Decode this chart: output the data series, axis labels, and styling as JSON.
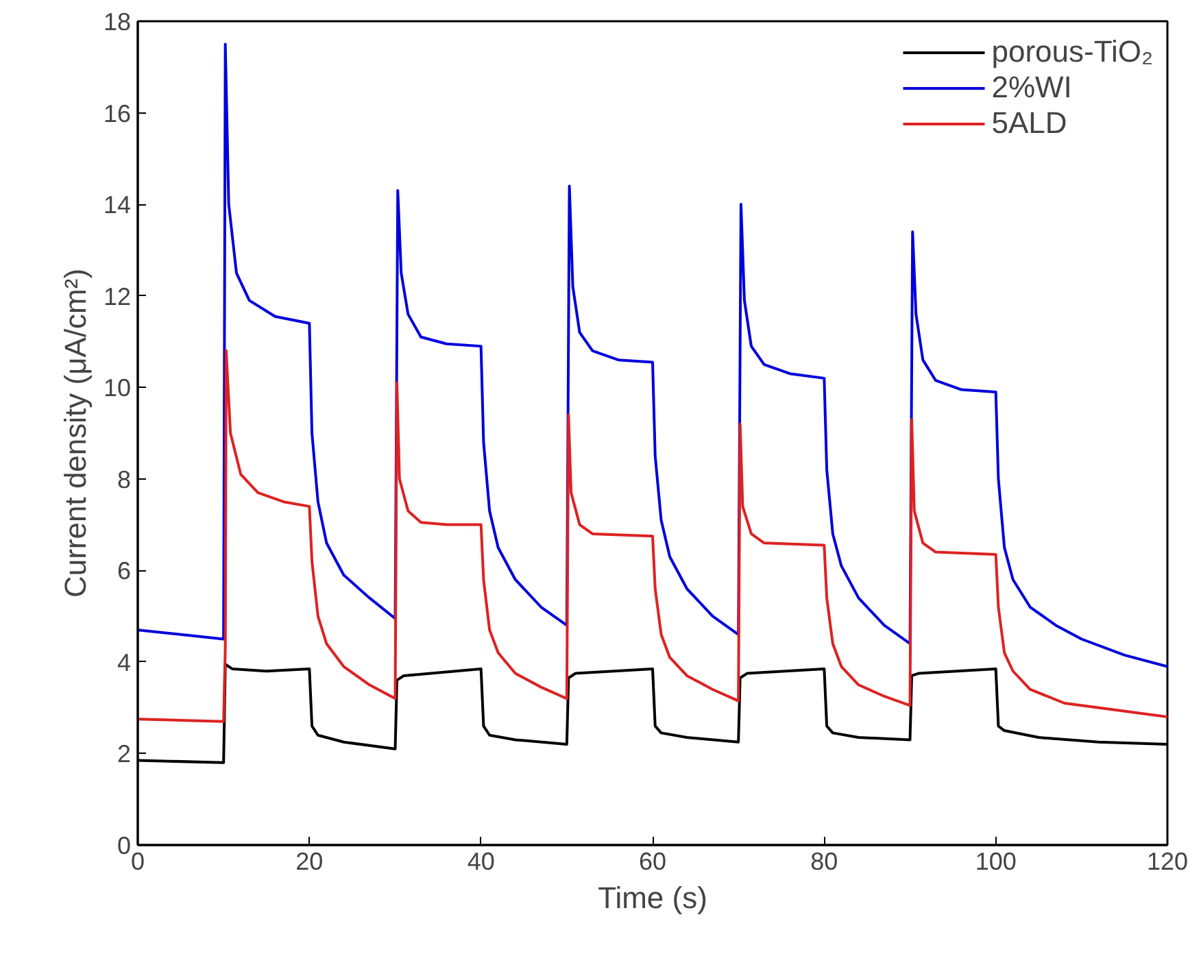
{
  "chart_data": {
    "type": "line",
    "xlabel": "Time (s)",
    "ylabel": "Current density (μA/cm²)",
    "xlim": [
      0,
      120
    ],
    "ylim": [
      0,
      18
    ],
    "xticks": [
      0,
      20,
      40,
      60,
      80,
      100,
      120
    ],
    "yticks": [
      0,
      2,
      4,
      6,
      8,
      10,
      12,
      14,
      16,
      18
    ],
    "grid": false,
    "legend": "top right",
    "marker": "none",
    "line_style": "solid",
    "series": [
      {
        "name": "porous-TiO₂",
        "color": "#000000",
        "x": [
          0,
          10,
          10.2,
          11,
          15,
          20,
          20.3,
          21,
          24,
          30,
          30.2,
          31,
          40,
          40.3,
          41,
          44,
          50,
          50.2,
          51,
          60,
          60.3,
          61,
          64,
          70,
          70.2,
          71,
          80,
          80.3,
          81,
          84,
          90,
          90.2,
          91,
          100,
          100.3,
          101,
          105,
          112,
          120
        ],
        "values": [
          1.85,
          1.8,
          3.95,
          3.85,
          3.8,
          3.85,
          2.6,
          2.4,
          2.25,
          2.1,
          3.6,
          3.7,
          3.85,
          2.6,
          2.4,
          2.3,
          2.2,
          3.65,
          3.75,
          3.85,
          2.6,
          2.45,
          2.35,
          2.25,
          3.65,
          3.75,
          3.85,
          2.6,
          2.45,
          2.35,
          2.3,
          3.7,
          3.75,
          3.85,
          2.6,
          2.5,
          2.35,
          2.25,
          2.2
        ]
      },
      {
        "name": "2%WI",
        "color": "#0000dd",
        "x": [
          0,
          10,
          10.2,
          10.6,
          11.5,
          13,
          16,
          20,
          20.3,
          21,
          22,
          24,
          27,
          30,
          30.3,
          30.7,
          31.5,
          33,
          36,
          40,
          40.3,
          41,
          42,
          44,
          47,
          50,
          50.3,
          50.7,
          51.5,
          53,
          56,
          60,
          60.3,
          61,
          62,
          64,
          67,
          70,
          70.3,
          70.7,
          71.5,
          73,
          76,
          80,
          80.3,
          81,
          82,
          84,
          87,
          90,
          90.3,
          90.7,
          91.5,
          93,
          96,
          100,
          100.3,
          101,
          102,
          104,
          107,
          110,
          115,
          120
        ],
        "values": [
          4.7,
          4.5,
          17.5,
          14,
          12.5,
          11.9,
          11.55,
          11.4,
          9,
          7.5,
          6.6,
          5.9,
          5.4,
          4.95,
          14.3,
          12.5,
          11.6,
          11.1,
          10.95,
          10.9,
          8.8,
          7.3,
          6.5,
          5.8,
          5.2,
          4.8,
          14.4,
          12.2,
          11.2,
          10.8,
          10.6,
          10.55,
          8.5,
          7.1,
          6.3,
          5.6,
          5.0,
          4.6,
          14.0,
          11.9,
          10.9,
          10.5,
          10.3,
          10.2,
          8.2,
          6.8,
          6.1,
          5.4,
          4.8,
          4.4,
          13.4,
          11.6,
          10.6,
          10.15,
          9.95,
          9.9,
          8,
          6.5,
          5.8,
          5.2,
          4.8,
          4.5,
          4.15,
          3.9
        ]
      },
      {
        "name": "5ALD",
        "color": "#dd2222",
        "x": [
          0,
          10,
          10.2,
          10.3,
          10.8,
          12,
          14,
          17,
          20,
          20.3,
          21,
          22,
          24,
          27,
          30,
          30.2,
          30.5,
          31.5,
          33,
          36,
          40,
          40.3,
          41,
          42,
          44,
          47,
          50,
          50.2,
          50.5,
          51.5,
          53,
          60,
          60.3,
          61,
          62,
          64,
          67,
          70,
          70.2,
          70.5,
          71.5,
          73,
          80,
          80.3,
          81,
          82,
          84,
          87,
          90,
          90.2,
          90.5,
          91.5,
          93,
          100,
          100.3,
          101,
          102,
          104,
          108,
          114,
          120
        ],
        "values": [
          2.75,
          2.7,
          4.3,
          10.8,
          9,
          8.1,
          7.7,
          7.5,
          7.4,
          6.2,
          5.0,
          4.4,
          3.9,
          3.5,
          3.2,
          10.1,
          8.0,
          7.3,
          7.05,
          7.0,
          7.0,
          5.8,
          4.7,
          4.2,
          3.75,
          3.45,
          3.2,
          9.4,
          7.7,
          7.0,
          6.8,
          6.75,
          5.6,
          4.6,
          4.1,
          3.7,
          3.4,
          3.15,
          9.2,
          7.4,
          6.8,
          6.6,
          6.55,
          5.4,
          4.4,
          3.9,
          3.5,
          3.25,
          3.05,
          9.3,
          7.3,
          6.6,
          6.4,
          6.35,
          5.2,
          4.2,
          3.8,
          3.4,
          3.1,
          2.95,
          2.8
        ]
      }
    ]
  }
}
